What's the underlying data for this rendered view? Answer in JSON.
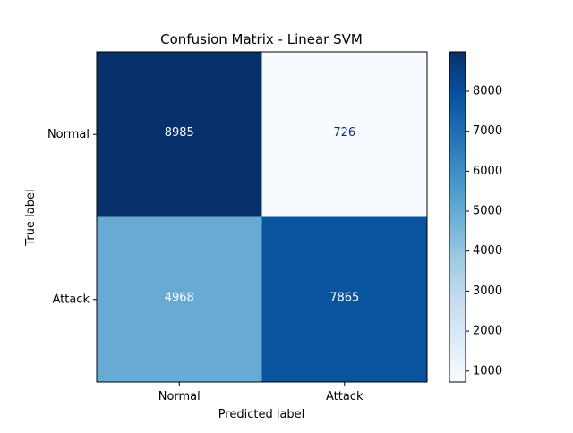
{
  "chart_data": {
    "type": "heatmap",
    "title": "Confusion Matrix - Linear SVM",
    "xlabel": "Predicted label",
    "ylabel": "True label",
    "x_categories": [
      "Normal",
      "Attack"
    ],
    "y_categories": [
      "Normal",
      "Attack"
    ],
    "values": [
      [
        8985,
        726
      ],
      [
        4968,
        7865
      ]
    ],
    "colormap": "Blues",
    "colorbar": {
      "min": 726,
      "max": 8985,
      "ticks": [
        1000,
        2000,
        3000,
        4000,
        5000,
        6000,
        7000,
        8000
      ]
    },
    "text_color_dark_cell": "#ffffff",
    "text_color_light_cell": "#08306b"
  }
}
